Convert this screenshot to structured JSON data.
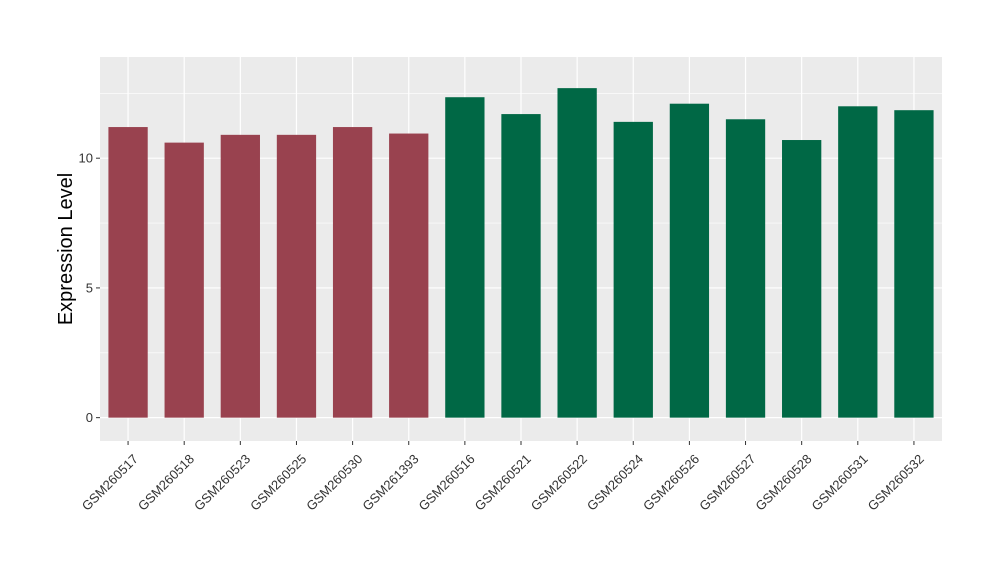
{
  "chart_data": {
    "type": "bar",
    "title": "",
    "xlabel": "",
    "ylabel": "Expression Level",
    "ylim": [
      -0.9,
      13.9
    ],
    "yticks": [
      0,
      5,
      10
    ],
    "grid": true,
    "categories": [
      "GSM260517",
      "GSM260518",
      "GSM260523",
      "GSM260525",
      "GSM260530",
      "GSM261393",
      "GSM260516",
      "GSM260521",
      "GSM260522",
      "GSM260524",
      "GSM260526",
      "GSM260527",
      "GSM260528",
      "GSM260531",
      "GSM260532"
    ],
    "values": [
      11.2,
      10.6,
      10.9,
      10.9,
      11.2,
      10.95,
      12.35,
      11.7,
      12.7,
      11.4,
      12.1,
      11.5,
      10.7,
      12.0,
      11.85
    ],
    "bar_colors": [
      "#99424f",
      "#99424f",
      "#99424f",
      "#99424f",
      "#99424f",
      "#99424f",
      "#006845",
      "#006845",
      "#006845",
      "#006845",
      "#006845",
      "#006845",
      "#006845",
      "#006845",
      "#006845"
    ],
    "panel_background": "#ebebeb",
    "grid_color": "#ffffff"
  }
}
